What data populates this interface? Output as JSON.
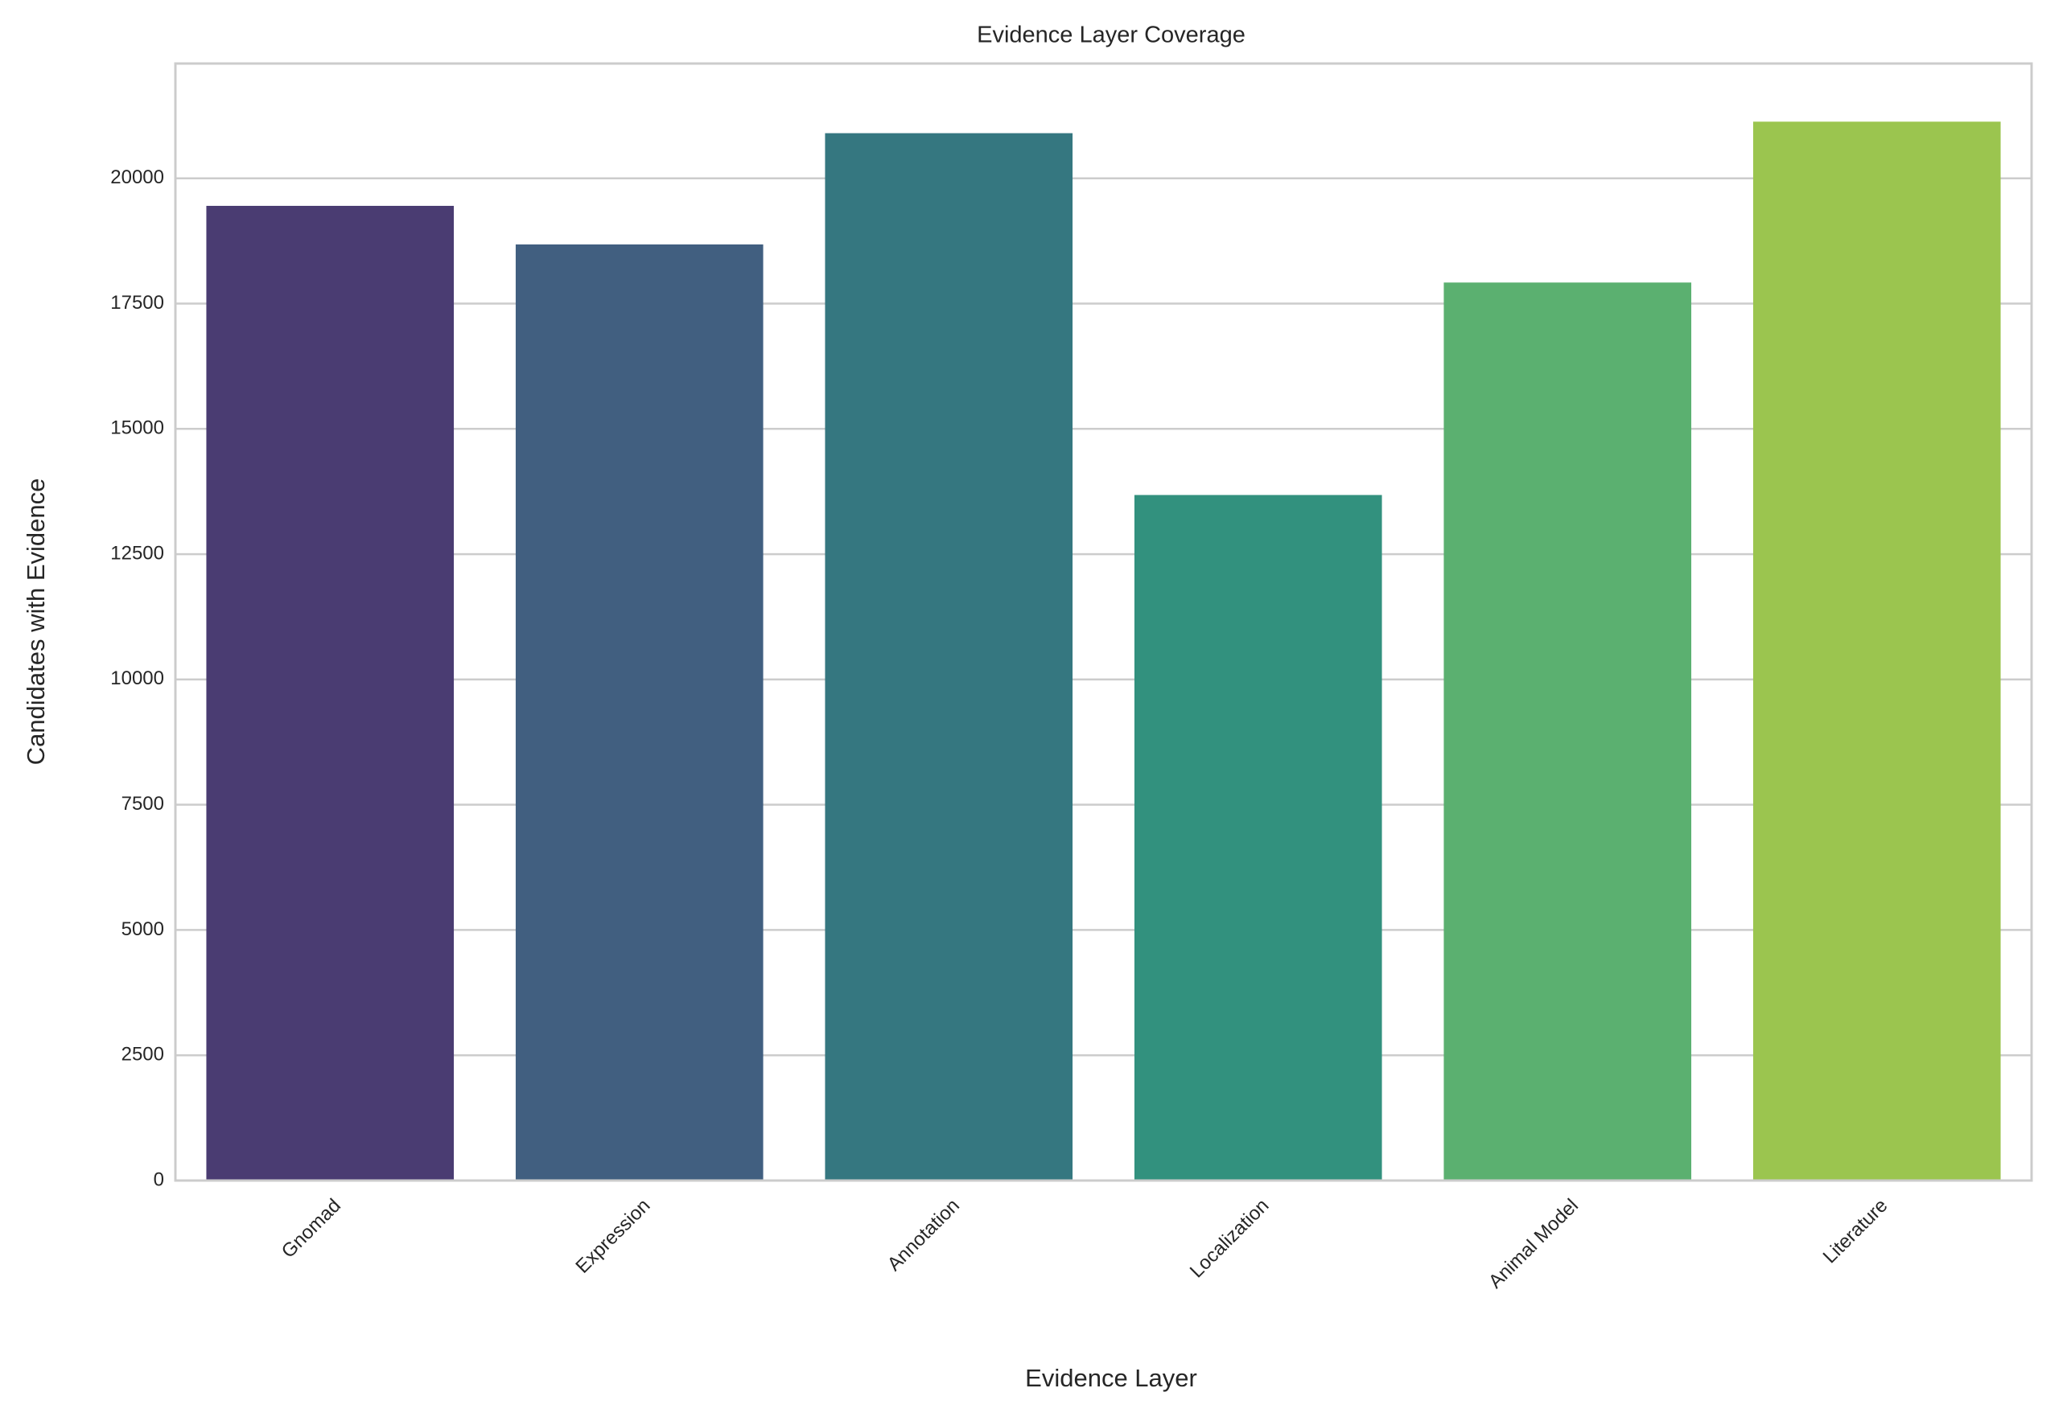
{
  "chart_data": {
    "type": "bar",
    "title": "Evidence Layer Coverage",
    "x_label": "Evidence Layer",
    "y_label": "Candidates with Evidence",
    "categories": [
      "Gnomad",
      "Expression",
      "Annotation",
      "Localization",
      "Animal Model",
      "Literature"
    ],
    "values": [
      19450,
      18680,
      20900,
      13680,
      17920,
      21130
    ],
    "colors": [
      "#4a3c72",
      "#415f80",
      "#357780",
      "#32917e",
      "#5bb070",
      "#9bc54f"
    ],
    "ylim": [
      0,
      22290
    ],
    "yticks": [
      0,
      2500,
      5000,
      7500,
      10000,
      12500,
      15000,
      17500,
      20000
    ],
    "grid": true
  }
}
